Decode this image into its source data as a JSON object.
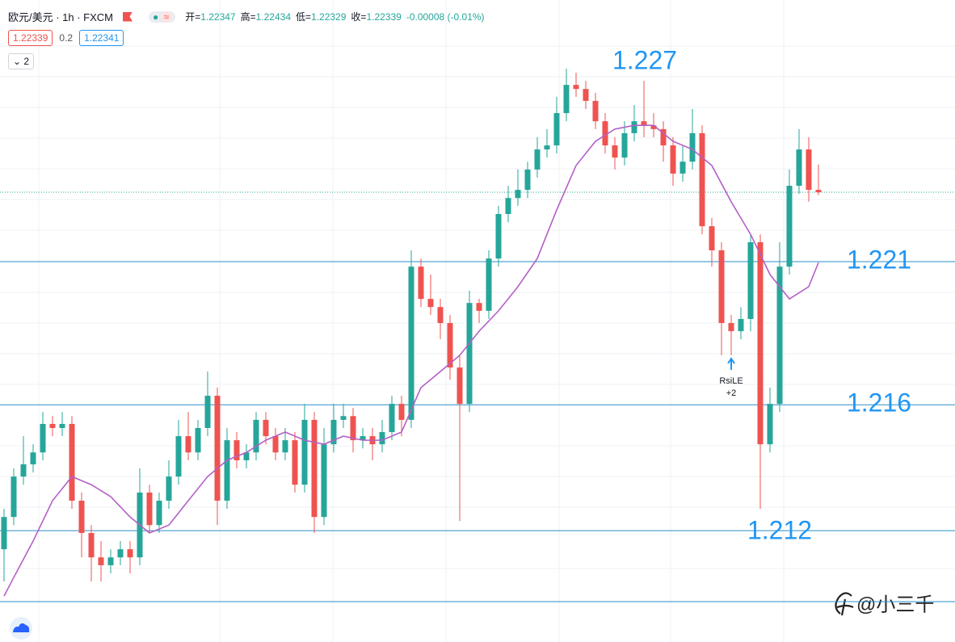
{
  "header": {
    "title": "欧元/美元 · 1h · FXCM",
    "ohlc": [
      {
        "label": "开=",
        "value": 1.22347
      },
      {
        "label": "高=",
        "value": 1.22434
      },
      {
        "label": "低=",
        "value": 1.22329
      },
      {
        "label": "收=",
        "value": 1.22339
      }
    ],
    "change": "-0.00008 (-0.01%)",
    "bid": 1.22339,
    "spread": 0.2,
    "ask": 1.22341,
    "indicators_collapsed": 2
  },
  "chart_data": {
    "type": "candlestick",
    "up_color": "#26a69a",
    "down_color": "#ef5350",
    "ylim": [
      1.20792,
      1.23
    ],
    "open": [
      1.21111,
      1.21222,
      1.21361,
      1.21403,
      1.21444,
      1.21542,
      1.21528,
      1.21542,
      1.21278,
      1.21167,
      1.21083,
      1.21056,
      1.21083,
      1.21111,
      1.21083,
      1.21306,
      1.21194,
      1.21278,
      1.21361,
      1.215,
      1.21444,
      1.21528,
      1.21639,
      1.21278,
      1.21486,
      1.21417,
      1.21444,
      1.21556,
      1.215,
      1.21444,
      1.21486,
      1.21333,
      1.21556,
      1.21222,
      1.21472,
      1.21556,
      1.21569,
      1.21486,
      1.215,
      1.21472,
      1.21514,
      1.21611,
      1.21556,
      1.22083,
      1.21972,
      1.21944,
      1.21889,
      1.21736,
      1.21611,
      1.21958,
      1.21931,
      1.22111,
      1.22264,
      1.22319,
      1.22347,
      1.22417,
      1.22486,
      1.225,
      1.22611,
      1.22708,
      1.22694,
      1.22653,
      1.22583,
      1.225,
      1.22458,
      1.22542,
      1.22583,
      1.22569,
      1.22556,
      1.225,
      1.22403,
      1.22444,
      1.22542,
      1.22222,
      1.22139,
      1.21889,
      1.21861,
      1.21903,
      1.22167,
      1.21472,
      1.21611,
      1.22083,
      1.22361,
      1.22486,
      1.22347
    ],
    "high": [
      1.2125,
      1.21389,
      1.215,
      1.21472,
      1.21583,
      1.21569,
      1.21583,
      1.21569,
      1.21306,
      1.21194,
      1.21139,
      1.21111,
      1.21139,
      1.21139,
      1.21389,
      1.21333,
      1.21306,
      1.21417,
      1.21556,
      1.21583,
      1.21556,
      1.21722,
      1.21667,
      1.21528,
      1.21514,
      1.21472,
      1.21583,
      1.21583,
      1.21528,
      1.21528,
      1.21514,
      1.21611,
      1.21583,
      1.21528,
      1.21611,
      1.21611,
      1.21597,
      1.21528,
      1.21528,
      1.21556,
      1.21639,
      1.21639,
      1.22139,
      1.22111,
      1.22056,
      1.21972,
      1.21917,
      1.21778,
      1.22,
      1.21972,
      1.22139,
      1.22292,
      1.22361,
      1.22417,
      1.22444,
      1.22528,
      1.22556,
      1.22667,
      1.22764,
      1.2275,
      1.22722,
      1.22681,
      1.22611,
      1.22528,
      1.22583,
      1.22639,
      1.22722,
      1.22611,
      1.22583,
      1.22528,
      1.225,
      1.22625,
      1.22569,
      1.2225,
      1.22167,
      1.21917,
      1.21944,
      1.22194,
      1.22194,
      1.21667,
      1.22167,
      1.22417,
      1.22556,
      1.22528,
      1.22434
    ],
    "low": [
      1.21,
      1.21194,
      1.21333,
      1.21375,
      1.21417,
      1.215,
      1.215,
      1.2125,
      1.21083,
      1.21,
      1.21,
      1.21028,
      1.21056,
      1.21028,
      1.21056,
      1.21167,
      1.21167,
      1.2125,
      1.21333,
      1.21417,
      1.21417,
      1.215,
      1.21194,
      1.2125,
      1.21389,
      1.21389,
      1.21417,
      1.21472,
      1.21417,
      1.21417,
      1.21306,
      1.21306,
      1.21167,
      1.21194,
      1.21444,
      1.21528,
      1.21444,
      1.21458,
      1.21417,
      1.21444,
      1.21486,
      1.215,
      1.21528,
      1.21944,
      1.21917,
      1.21833,
      1.21694,
      1.21208,
      1.21583,
      1.21889,
      1.21903,
      1.22083,
      1.22236,
      1.22292,
      1.22319,
      1.22389,
      1.22458,
      1.22472,
      1.22583,
      1.22667,
      1.22625,
      1.22556,
      1.22472,
      1.22417,
      1.22431,
      1.22514,
      1.22528,
      1.22528,
      1.22444,
      1.22361,
      1.22375,
      1.22417,
      1.22194,
      1.22083,
      1.21778,
      1.21778,
      1.21833,
      1.21861,
      1.2125,
      1.21444,
      1.21583,
      1.22056,
      1.22333,
      1.22306,
      1.22329
    ],
    "close": [
      1.21222,
      1.21361,
      1.21403,
      1.21444,
      1.21542,
      1.21528,
      1.21542,
      1.21278,
      1.21167,
      1.21083,
      1.21056,
      1.21083,
      1.21111,
      1.21083,
      1.21306,
      1.21194,
      1.21278,
      1.21361,
      1.215,
      1.21444,
      1.21528,
      1.21639,
      1.21278,
      1.21486,
      1.21417,
      1.21444,
      1.21556,
      1.215,
      1.21444,
      1.21486,
      1.21333,
      1.21556,
      1.21222,
      1.21472,
      1.21556,
      1.21569,
      1.21486,
      1.215,
      1.21472,
      1.21514,
      1.21611,
      1.21556,
      1.22083,
      1.21972,
      1.21944,
      1.21889,
      1.21736,
      1.21611,
      1.21958,
      1.21931,
      1.22111,
      1.22264,
      1.22319,
      1.22347,
      1.22417,
      1.22486,
      1.225,
      1.22611,
      1.22708,
      1.22694,
      1.22653,
      1.22583,
      1.225,
      1.22458,
      1.22542,
      1.22583,
      1.22569,
      1.22556,
      1.225,
      1.22403,
      1.22444,
      1.22542,
      1.22222,
      1.22139,
      1.21889,
      1.21861,
      1.21903,
      1.22167,
      1.21472,
      1.21611,
      1.22083,
      1.22361,
      1.22486,
      1.22347,
      1.22339
    ],
    "ma": {
      "color": "#b45fc6",
      "x": [
        0,
        1,
        3,
        5,
        7,
        9,
        11,
        13,
        15,
        17,
        19,
        21,
        23,
        25,
        27,
        29,
        31,
        33,
        35,
        37,
        39,
        41,
        43,
        45,
        47,
        49,
        51,
        53,
        55,
        57,
        59,
        61,
        63,
        65,
        67,
        69,
        71,
        73,
        75,
        77,
        79,
        81,
        83,
        84
      ],
      "values": [
        1.2095,
        1.21014,
        1.21139,
        1.21278,
        1.21361,
        1.21333,
        1.21292,
        1.21222,
        1.21167,
        1.21194,
        1.21278,
        1.21361,
        1.21417,
        1.21444,
        1.21486,
        1.21514,
        1.21486,
        1.21472,
        1.215,
        1.21486,
        1.21486,
        1.21514,
        1.21667,
        1.21722,
        1.21778,
        1.21861,
        1.21931,
        1.22014,
        1.22111,
        1.22278,
        1.22431,
        1.22514,
        1.22556,
        1.22569,
        1.22569,
        1.22514,
        1.22486,
        1.22431,
        1.22306,
        1.22194,
        1.22056,
        1.21972,
        1.22014,
        1.22097
      ]
    },
    "price_lines": {
      "color": "#2a8fc9",
      "values": [
        1.221,
        1.21608,
        1.21175,
        1.20931
      ]
    },
    "price_labels": [
      1.227,
      1.221,
      1.216,
      1.212
    ],
    "signal": {
      "text": "RsiLE",
      "sub": "+2",
      "index": 75
    }
  },
  "watermark": "@小三千"
}
